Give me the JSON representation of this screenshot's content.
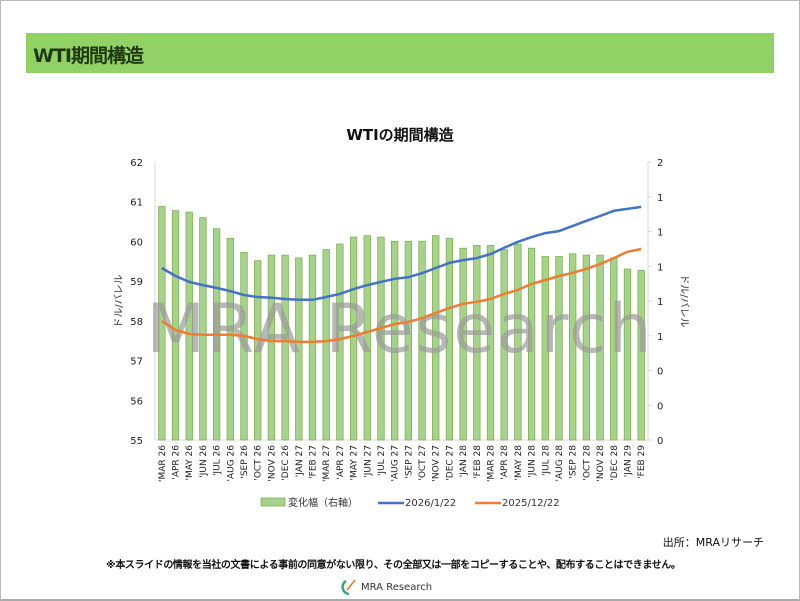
{
  "slide_title": "WTI期間構造",
  "source": "出所：MRAリサーチ",
  "disclaimer": "※本スライドの情報を当社の文書による事前の同意がない限り、その全部又は一部をコピーすることや、配布することはできません。",
  "logo_text": "MRA Research",
  "watermark": "MRA Research",
  "colors": {
    "banner": "#92d166",
    "bar": "#a9d18e",
    "bar_border": "#70ad47",
    "blue": "#4472c4",
    "orange": "#ed7d31"
  },
  "chart_data": {
    "type": "bar+line",
    "title": "WTIの期間構造",
    "ylabel": "ドル/バレル",
    "y2label": "ドル/バレル",
    "ylim": [
      55,
      62
    ],
    "y2lim": [
      0,
      2
    ],
    "yticks": [
      "55",
      "56",
      "57",
      "58",
      "59",
      "60",
      "61",
      "62"
    ],
    "y2ticks": [
      "0",
      "0",
      "0",
      "1",
      "1",
      "1",
      "1",
      "1",
      "2"
    ],
    "legend_position": "bottom",
    "categories": [
      "'MAR 26",
      "'APR 26",
      "'MAY 26",
      "'JUN 26",
      "'JUL 26",
      "'AUG 26",
      "'SEP 26",
      "'OCT 26",
      "'NOV 26",
      "'DEC 26",
      "'JAN 27",
      "'FEB 27",
      "'MAR 27",
      "'APR 27",
      "'MAY 27",
      "'JUN 27",
      "'JUL 27",
      "'AUG 27",
      "'SEP 27",
      "'OCT 27",
      "'NOV 27",
      "'DEC 27",
      "'JAN 28",
      "'FEB 28",
      "'MAR 28",
      "'APR 28",
      "'MAY 28",
      "'JUN 28",
      "'JUL 28",
      "'AUG 28",
      "'SEP 28",
      "'OCT 28",
      "'NOV 28",
      "'DEC 28",
      "'JAN 29",
      "'FEB 29"
    ],
    "series": [
      {
        "name": "変化幅（右軸）",
        "type": "bar",
        "axis": "right",
        "values": [
          1.68,
          1.65,
          1.64,
          1.6,
          1.52,
          1.45,
          1.35,
          1.29,
          1.33,
          1.33,
          1.31,
          1.33,
          1.37,
          1.41,
          1.46,
          1.47,
          1.46,
          1.43,
          1.43,
          1.43,
          1.47,
          1.45,
          1.38,
          1.4,
          1.4,
          1.37,
          1.41,
          1.38,
          1.32,
          1.32,
          1.34,
          1.33,
          1.33,
          1.31,
          1.23,
          1.22
        ]
      },
      {
        "name": "2026/1/22",
        "type": "line",
        "axis": "left",
        "values": [
          59.33,
          59.13,
          58.98,
          58.9,
          58.83,
          58.75,
          58.65,
          58.6,
          58.58,
          58.55,
          58.53,
          58.53,
          58.6,
          58.68,
          58.8,
          58.9,
          58.98,
          59.06,
          59.1,
          59.2,
          59.33,
          59.46,
          59.53,
          59.58,
          59.68,
          59.84,
          59.99,
          60.11,
          60.21,
          60.26,
          60.39,
          60.52,
          60.64,
          60.77,
          60.82,
          60.87
        ]
      },
      {
        "name": "2025/12/22",
        "type": "line",
        "axis": "left",
        "values": [
          58.0,
          57.77,
          57.67,
          57.65,
          57.65,
          57.65,
          57.62,
          57.54,
          57.49,
          57.49,
          57.47,
          57.47,
          57.49,
          57.54,
          57.62,
          57.72,
          57.82,
          57.92,
          57.97,
          58.07,
          58.2,
          58.32,
          58.43,
          58.48,
          58.55,
          58.68,
          58.78,
          58.93,
          59.03,
          59.13,
          59.21,
          59.31,
          59.43,
          59.58,
          59.74,
          59.81
        ]
      }
    ]
  }
}
